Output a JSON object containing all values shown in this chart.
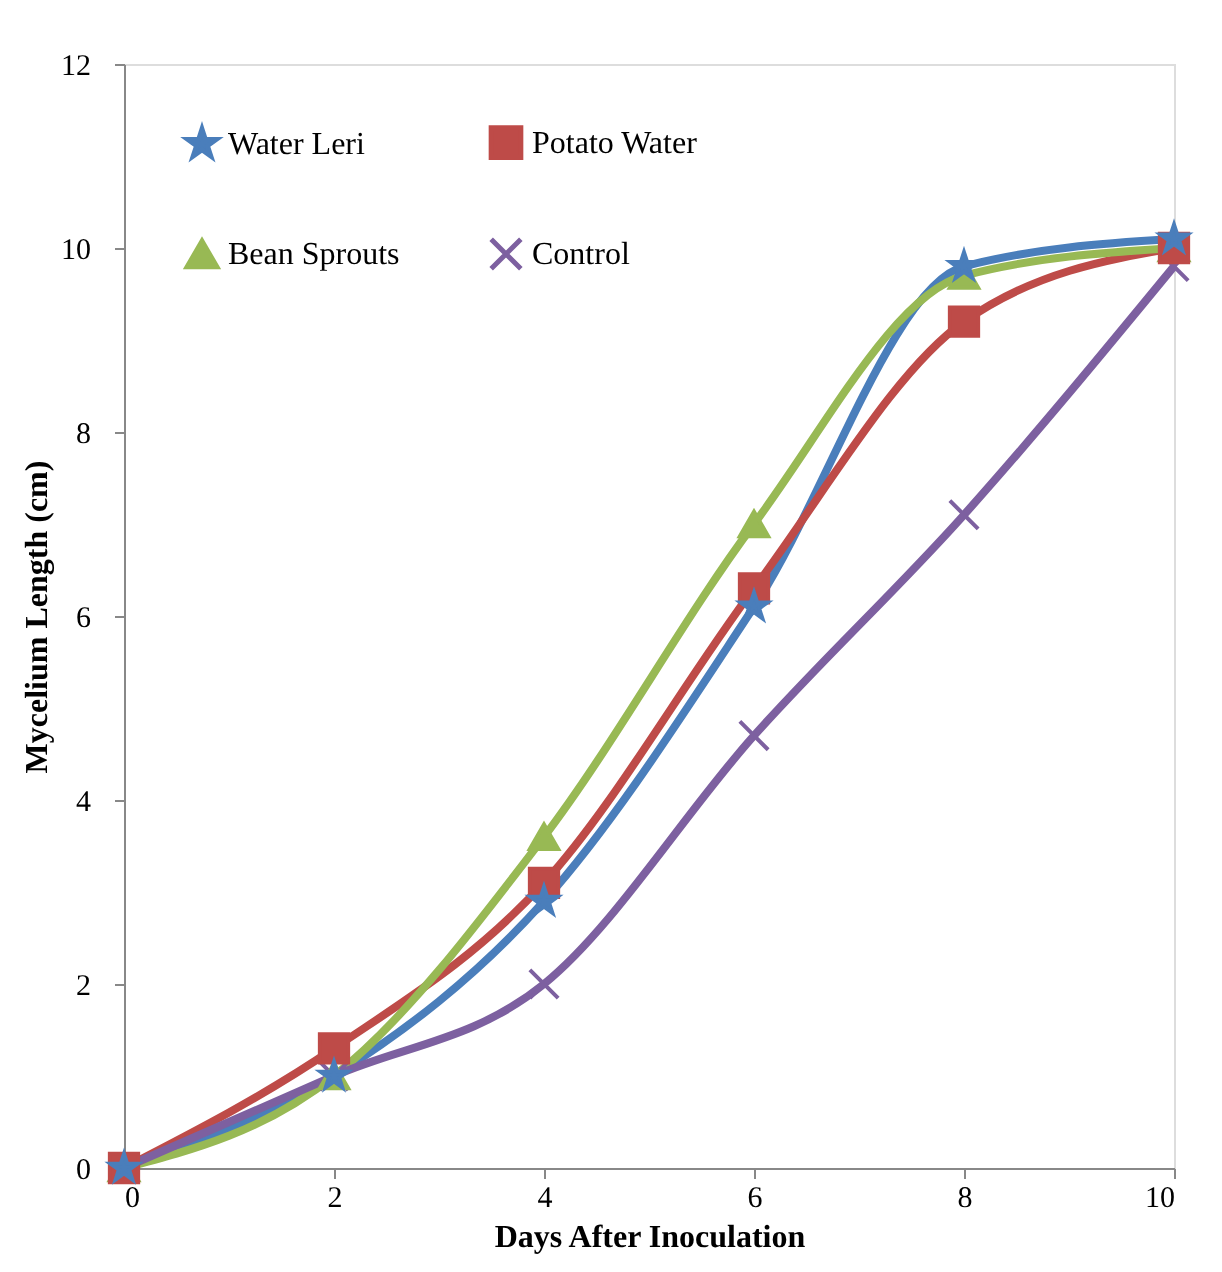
{
  "chart_data": {
    "type": "line",
    "xlabel": "Days After Inoculation",
    "ylabel": "Mycelium  Length (cm)",
    "x": [
      0,
      2,
      4,
      6,
      8,
      10
    ],
    "series": [
      {
        "name": "Water Leri",
        "color": "#4a7ebb",
        "marker": "star",
        "values": [
          0,
          1.0,
          2.9,
          6.1,
          9.8,
          10.1
        ]
      },
      {
        "name": "Potato Water",
        "color": "#be4b48",
        "marker": "square",
        "values": [
          0,
          1.3,
          3.1,
          6.3,
          9.2,
          10.0
        ]
      },
      {
        "name": "Bean Sprouts",
        "color": "#98b954",
        "marker": "triangle",
        "values": [
          0,
          1.0,
          3.6,
          7.0,
          9.7,
          10.0
        ]
      },
      {
        "name": "Control",
        "color": "#7d60a0",
        "marker": "cross",
        "values": [
          0,
          1.0,
          2.0,
          4.7,
          7.1,
          9.8
        ]
      }
    ],
    "xlim": [
      0,
      10
    ],
    "xticks": [
      0,
      2,
      4,
      6,
      8,
      10
    ],
    "ylim": [
      0,
      12
    ],
    "yticks": [
      0,
      2,
      4,
      6,
      8,
      10,
      12
    ],
    "grid": false,
    "legend": "top left",
    "line_style": "solid"
  }
}
